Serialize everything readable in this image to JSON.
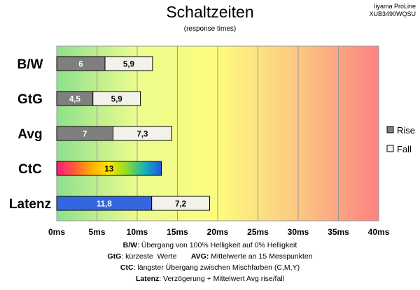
{
  "title": "Schaltzeiten",
  "subtitle": "(response times)",
  "brand_line1": "Iiyama ProLine",
  "brand_line2": "XUB3490WQSU",
  "colors": {
    "rise": "#7f7f7f",
    "fall": "#f2f2ea",
    "latency_rise": "#3367e0",
    "ctc_gradient": [
      "#ff1a7f",
      "#ff5a3c",
      "#ffb000",
      "#ffe500",
      "#8fdc28",
      "#19b4b4",
      "#1a5ae0"
    ],
    "bg_gradient": [
      "#8ee08e",
      "#ecfc8e",
      "#fcfc7e",
      "#fcc882",
      "#fc8282"
    ]
  },
  "footer": {
    "l1_key": "B/W",
    "l1_text": ":  Übergang von 100% Helligkeit auf 0% Helligkeit",
    "l2_key_a": "GtG",
    "l2_text_a": ": kürzeste  Werte       ",
    "l2_key_b": "AVG:",
    "l2_text_b": " Mittelwerte  an 15 Messpunkten",
    "l3_key": "CtC",
    "l3_text": ": längster Übergang  zwischen Mischfarben (C,M,Y)",
    "l4_key": "Latenz",
    "l4_text": ": Verzögerung  + Mittelwert Avg rise/fall"
  },
  "chart_data": {
    "type": "bar",
    "orientation": "horizontal",
    "stacked": true,
    "categories": [
      "B/W",
      "GtG",
      "Avg",
      "CtC",
      "Latenz"
    ],
    "series": [
      {
        "name": "Rise",
        "values": [
          6,
          4.5,
          7,
          13,
          11.8
        ],
        "labels": [
          "6",
          "4,5",
          "7",
          "13",
          "11,8"
        ]
      },
      {
        "name": "Fall",
        "values": [
          5.9,
          5.9,
          7.3,
          null,
          7.2
        ],
        "labels": [
          "5,9",
          "5,9",
          "7,3",
          "",
          "7,2"
        ]
      }
    ],
    "x_ticks": [
      "0ms",
      "5ms",
      "10ms",
      "15ms",
      "20ms",
      "25ms",
      "30ms",
      "35ms",
      "40ms"
    ],
    "xlim": [
      0,
      40
    ],
    "legend_position": "right",
    "grid": true
  }
}
